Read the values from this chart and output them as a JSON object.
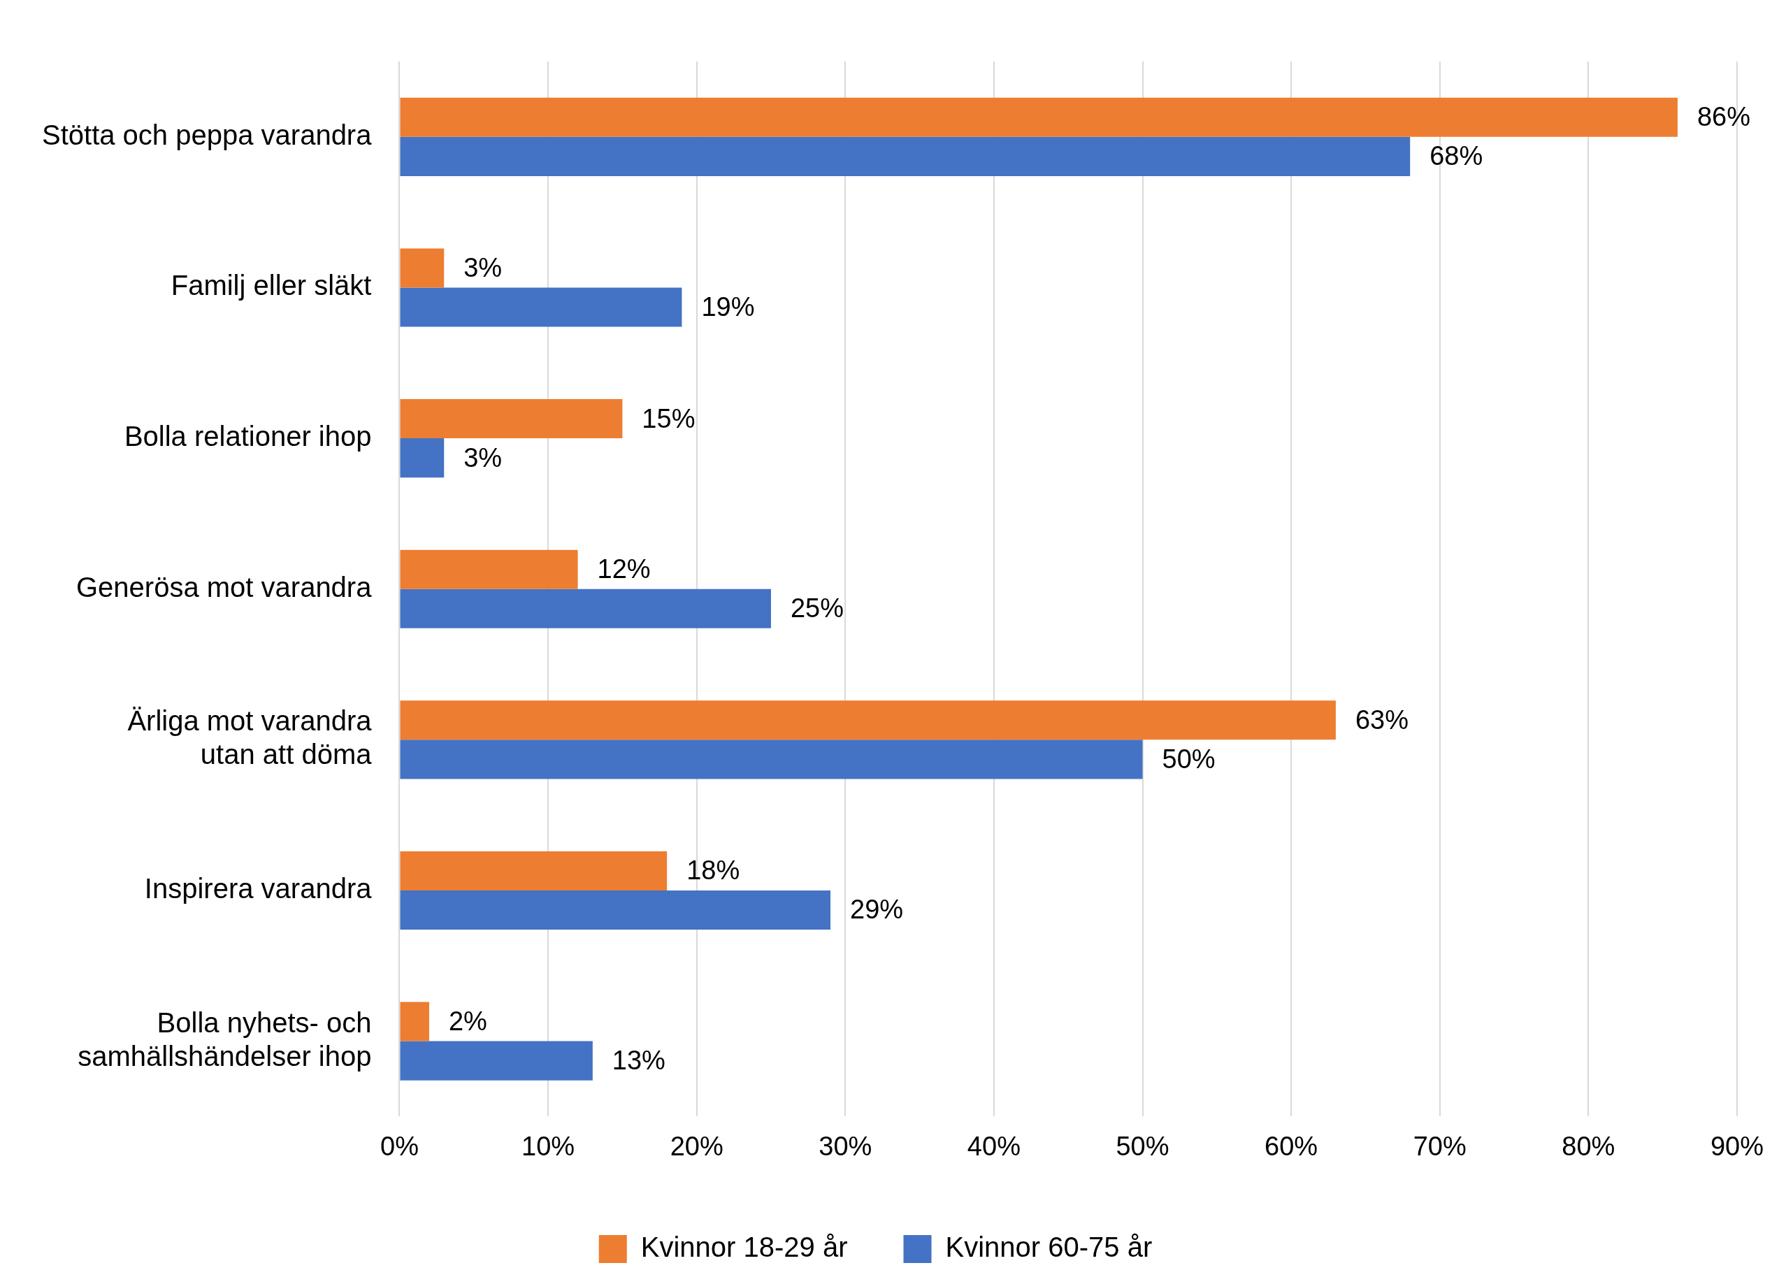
{
  "chart_data": {
    "type": "bar",
    "orientation": "horizontal",
    "categories": [
      "Stötta och peppa varandra",
      "Familj eller släkt",
      "Bolla relationer ihop",
      "Generösa mot varandra",
      "Ärliga mot varandra\nutan att döma",
      "Inspirera varandra",
      "Bolla nyhets- och\nsamhällshändelser ihop"
    ],
    "series": [
      {
        "name": "Kvinnor 18-29 år",
        "color": "#ed7d31",
        "values": [
          86,
          3,
          15,
          12,
          63,
          18,
          2
        ],
        "value_labels": [
          "86%",
          "3%",
          "15%",
          "12%",
          "63%",
          "18%",
          "2%"
        ]
      },
      {
        "name": "Kvinnor 60-75 år",
        "color": "#4472c4",
        "values": [
          68,
          19,
          3,
          25,
          50,
          29,
          13
        ],
        "value_labels": [
          "68%",
          "19%",
          "3%",
          "25%",
          "50%",
          "29%",
          "13%"
        ]
      }
    ],
    "xlim": [
      0,
      90
    ],
    "xticks": [
      {
        "value": 0,
        "label": "0%"
      },
      {
        "value": 10,
        "label": "10%"
      },
      {
        "value": 20,
        "label": "20%"
      },
      {
        "value": 30,
        "label": "30%"
      },
      {
        "value": 40,
        "label": "40%"
      },
      {
        "value": 50,
        "label": "50%"
      },
      {
        "value": 60,
        "label": "60%"
      },
      {
        "value": 70,
        "label": "70%"
      },
      {
        "value": 80,
        "label": "80%"
      },
      {
        "value": 90,
        "label": "90%"
      }
    ],
    "grid": "x",
    "legend": "bottom"
  }
}
